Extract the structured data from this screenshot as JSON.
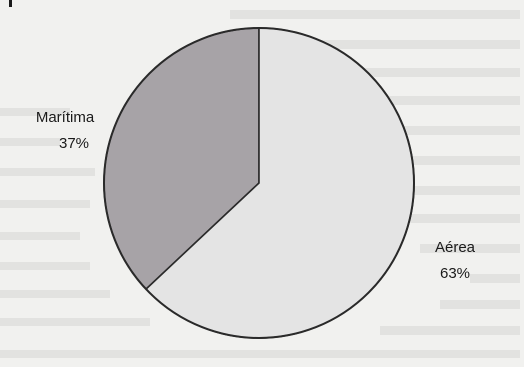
{
  "chart_data": {
    "type": "pie",
    "title": "",
    "slices": [
      {
        "label": "Marítima",
        "percent_text": "37%",
        "value": 37,
        "color": "#a7a3a7"
      },
      {
        "label": "Aérea",
        "percent_text": "63%",
        "value": 63,
        "color": "#e4e4e4"
      }
    ],
    "start_angle_deg": 0,
    "direction": "clockwise",
    "outline_color": "#2a2a2a",
    "background_color": "#f1f1ef",
    "legend": "none"
  }
}
